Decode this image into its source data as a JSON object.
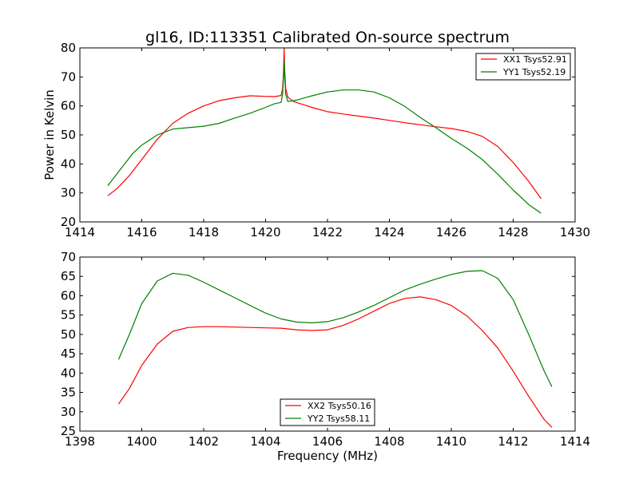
{
  "figure": {
    "title": "gl16, ID:113351 Calibrated On-source spectrum",
    "xlabel": "Frequency (MHz)",
    "ylabel": "Power in Kelvin"
  },
  "chart_data": [
    {
      "type": "line",
      "title": "gl16, ID:113351 Calibrated On-source spectrum",
      "xlabel": "",
      "ylabel": "Power in Kelvin",
      "xlim": [
        1414,
        1430
      ],
      "ylim": [
        20,
        80
      ],
      "xticks": [
        1414,
        1416,
        1418,
        1420,
        1422,
        1424,
        1426,
        1428,
        1430
      ],
      "yticks": [
        20,
        30,
        40,
        50,
        60,
        70,
        80
      ],
      "grid": false,
      "legend": "top-right",
      "series": [
        {
          "name": "XX1 Tsys52.91",
          "color": "#ff0000",
          "x": [
            1414.9,
            1415.2,
            1415.6,
            1416.0,
            1416.5,
            1417.0,
            1417.5,
            1418.0,
            1418.5,
            1419.0,
            1419.5,
            1420.0,
            1420.3,
            1420.5,
            1420.55,
            1420.58,
            1420.6,
            1420.62,
            1420.65,
            1420.72,
            1420.9,
            1421.5,
            1422.0,
            1422.5,
            1423.0,
            1423.5,
            1424.0,
            1424.5,
            1425.0,
            1425.5,
            1426.0,
            1426.5,
            1427.0,
            1427.5,
            1428.0,
            1428.5,
            1428.9
          ],
          "y": [
            29.0,
            31.5,
            36.0,
            41.5,
            48.5,
            54.0,
            57.5,
            60.0,
            61.8,
            62.8,
            63.5,
            63.3,
            63.2,
            63.6,
            66.0,
            72.0,
            80.0,
            72.0,
            66.0,
            63.0,
            61.5,
            59.5,
            58.0,
            57.2,
            56.5,
            55.8,
            55.0,
            54.2,
            53.5,
            52.8,
            52.2,
            51.2,
            49.5,
            46.0,
            40.5,
            34.0,
            28.0
          ]
        },
        {
          "name": "YY1 Tsys52.19",
          "color": "#008000",
          "x": [
            1414.9,
            1415.3,
            1415.7,
            1416.0,
            1416.5,
            1417.0,
            1417.5,
            1418.0,
            1418.5,
            1419.0,
            1419.5,
            1420.0,
            1420.3,
            1420.5,
            1420.55,
            1420.58,
            1420.6,
            1420.62,
            1420.65,
            1420.72,
            1421.0,
            1421.5,
            1422.0,
            1422.5,
            1423.0,
            1423.5,
            1424.0,
            1424.5,
            1425.0,
            1425.5,
            1426.0,
            1426.5,
            1427.0,
            1427.5,
            1428.0,
            1428.5,
            1428.9
          ],
          "y": [
            32.5,
            38.0,
            43.5,
            46.5,
            50.0,
            52.0,
            52.5,
            53.0,
            54.0,
            55.8,
            57.5,
            59.5,
            60.8,
            61.2,
            64.0,
            70.0,
            76.0,
            70.0,
            64.0,
            61.5,
            62.0,
            63.5,
            64.8,
            65.5,
            65.5,
            64.8,
            62.8,
            59.8,
            56.0,
            52.5,
            48.8,
            45.5,
            41.5,
            36.5,
            31.0,
            26.0,
            23.0
          ]
        }
      ]
    },
    {
      "type": "line",
      "title": "",
      "xlabel": "Frequency (MHz)",
      "ylabel": "",
      "xlim": [
        1398,
        1414
      ],
      "ylim": [
        25,
        70
      ],
      "xticks": [
        1398,
        1400,
        1402,
        1404,
        1406,
        1408,
        1410,
        1412,
        1414
      ],
      "yticks": [
        25,
        30,
        35,
        40,
        45,
        50,
        55,
        60,
        65,
        70
      ],
      "grid": false,
      "legend": "bottom-center",
      "series": [
        {
          "name": "XX2 Tsys50.16",
          "color": "#ff0000",
          "x": [
            1399.25,
            1399.6,
            1400.0,
            1400.5,
            1401.0,
            1401.5,
            1402.0,
            1402.5,
            1403.0,
            1403.5,
            1404.0,
            1404.5,
            1405.0,
            1405.5,
            1406.0,
            1406.5,
            1407.0,
            1407.5,
            1408.0,
            1408.5,
            1409.0,
            1409.5,
            1410.0,
            1410.5,
            1411.0,
            1411.5,
            1412.0,
            1412.5,
            1413.0,
            1413.25
          ],
          "y": [
            32.0,
            36.0,
            42.0,
            47.5,
            50.8,
            51.8,
            52.0,
            52.0,
            51.9,
            51.8,
            51.7,
            51.6,
            51.2,
            51.0,
            51.2,
            52.3,
            54.0,
            56.0,
            58.0,
            59.3,
            59.7,
            59.0,
            57.5,
            54.8,
            51.0,
            46.5,
            40.5,
            34.0,
            28.0,
            26.0
          ]
        },
        {
          "name": "YY2 Tsys58.11",
          "color": "#008000",
          "x": [
            1399.25,
            1399.6,
            1400.0,
            1400.5,
            1401.0,
            1401.5,
            1402.0,
            1402.5,
            1403.0,
            1403.5,
            1404.0,
            1404.5,
            1405.0,
            1405.5,
            1406.0,
            1406.5,
            1407.0,
            1407.5,
            1408.0,
            1408.5,
            1409.0,
            1409.5,
            1410.0,
            1410.5,
            1411.0,
            1411.5,
            1412.0,
            1412.5,
            1413.0,
            1413.25
          ],
          "y": [
            43.5,
            50.0,
            58.0,
            63.8,
            65.8,
            65.3,
            63.5,
            61.5,
            59.5,
            57.5,
            55.5,
            54.0,
            53.2,
            53.0,
            53.3,
            54.3,
            55.8,
            57.5,
            59.5,
            61.5,
            63.0,
            64.3,
            65.5,
            66.3,
            66.5,
            64.5,
            59.0,
            50.0,
            40.5,
            36.5
          ]
        }
      ]
    }
  ]
}
